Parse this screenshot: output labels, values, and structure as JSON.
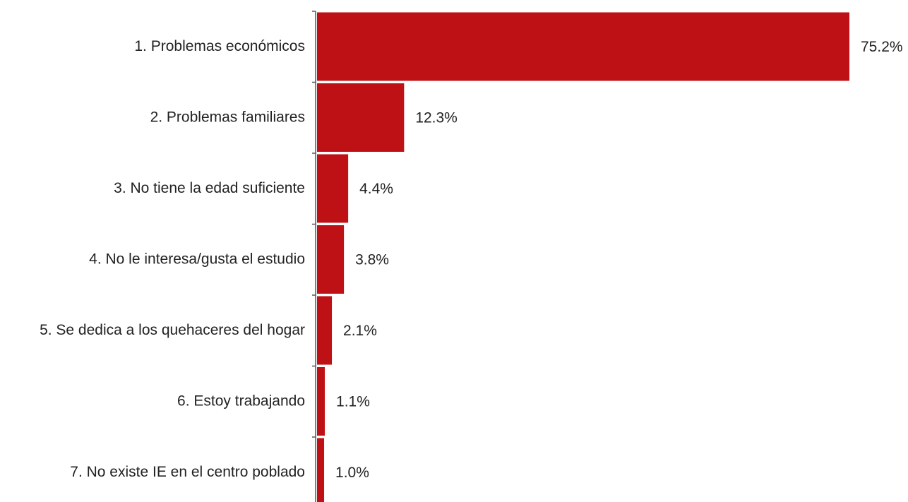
{
  "chart_data": {
    "type": "bar",
    "orientation": "horizontal",
    "categories": [
      "1. Problemas económicos",
      "2. Problemas familiares",
      "3. No tiene la edad suficiente",
      "4. No le interesa/gusta el estudio",
      "5. Se dedica a los quehaceres del hogar",
      "6. Estoy trabajando",
      "7. No existe IE en el centro poblado"
    ],
    "values": [
      75.2,
      12.3,
      4.4,
      3.8,
      2.1,
      1.1,
      1.0
    ],
    "value_labels": [
      "75.2%",
      "12.3%",
      "4.4%",
      "3.8%",
      "2.1%",
      "1.1%",
      "1.0%"
    ],
    "unit": "%",
    "xlim": [
      0,
      75.2
    ],
    "grid": false,
    "legend": "none",
    "colors": {
      "bar": "#be1116",
      "axis": "#555555",
      "text": "#222222"
    }
  }
}
